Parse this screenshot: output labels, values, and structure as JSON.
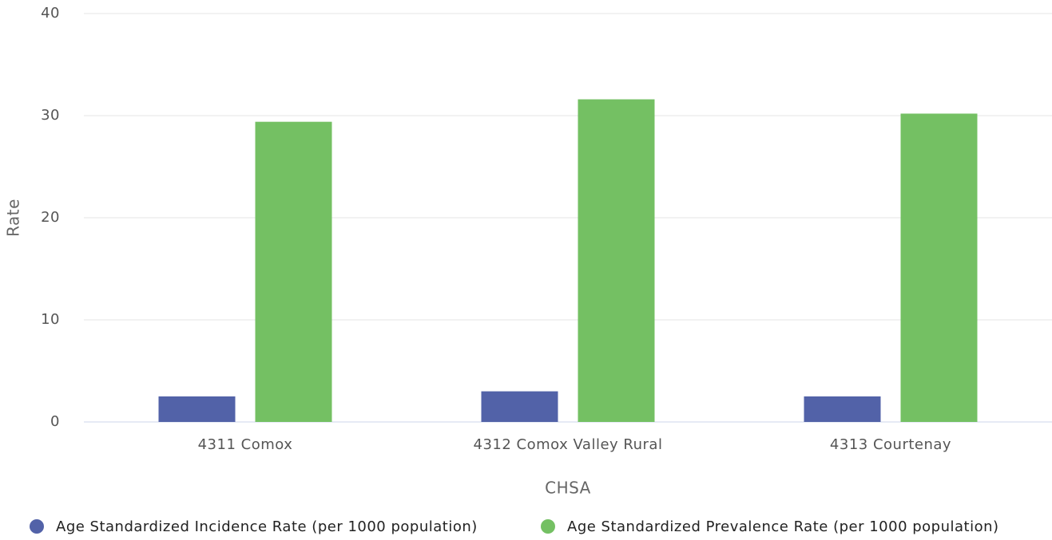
{
  "chart_data": {
    "type": "bar",
    "categories": [
      "4311 Comox",
      "4312 Comox Valley Rural",
      "4313 Courtenay"
    ],
    "series": [
      {
        "name": "Age Standardized Incidence Rate (per 1000 population)",
        "color": "#5262a8",
        "values": [
          2.5,
          3.0,
          2.5
        ]
      },
      {
        "name": "Age Standardized Prevalence Rate (per 1000 population)",
        "color": "#74c063",
        "values": [
          29.4,
          31.6,
          30.2
        ]
      }
    ],
    "x_label": "CHSA",
    "y_label": "Rate",
    "ylim": [
      0,
      40
    ],
    "yticks": [
      0,
      10,
      20,
      30,
      40
    ],
    "grid": true,
    "legend": "bottom"
  }
}
